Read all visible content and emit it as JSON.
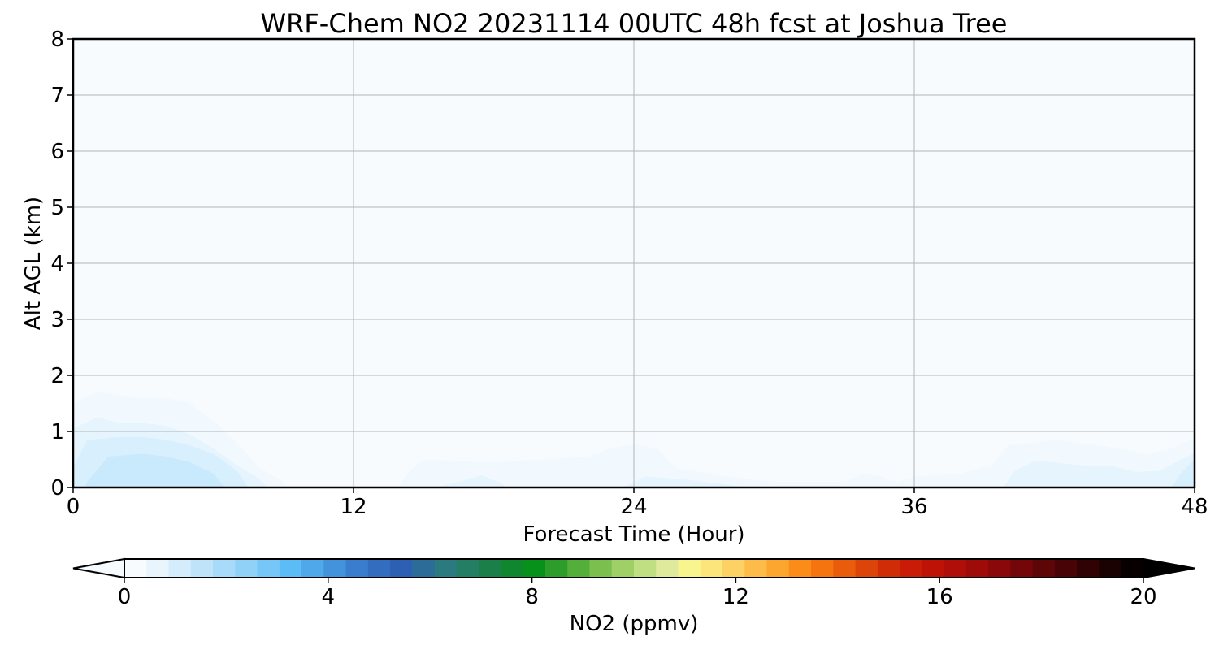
{
  "chart_data": {
    "type": "heatmap",
    "title": "WRF-Chem NO2  20231114 00UTC 48h fcst at Joshua Tree",
    "xlabel": "Forecast Time (Hour)",
    "ylabel": "Alt AGL (km)",
    "xlim": [
      0,
      48
    ],
    "ylim": [
      0,
      8
    ],
    "xticks": [
      "0",
      "12",
      "24",
      "36",
      "48"
    ],
    "yticks": [
      "0",
      "1",
      "2",
      "3",
      "4",
      "5",
      "6",
      "7",
      "8"
    ],
    "grid": true,
    "contour_regions": [
      {
        "level": 0.25,
        "color": "#f2f9fe",
        "points": [
          [
            0,
            1.5
          ],
          [
            1,
            1.7
          ],
          [
            2,
            1.65
          ],
          [
            3,
            1.6
          ],
          [
            4,
            1.6
          ],
          [
            5,
            1.5
          ],
          [
            6,
            1.2
          ],
          [
            7,
            0.8
          ],
          [
            8,
            0.35
          ],
          [
            9,
            0.1
          ],
          [
            9.2,
            0
          ],
          [
            0,
            0
          ]
        ]
      },
      {
        "level": 0.5,
        "color": "#e6f4fd",
        "points": [
          [
            0,
            1.05
          ],
          [
            1,
            1.25
          ],
          [
            2,
            1.15
          ],
          [
            3,
            1.15
          ],
          [
            4,
            1.1
          ],
          [
            5,
            0.95
          ],
          [
            6,
            0.7
          ],
          [
            7,
            0.4
          ],
          [
            8,
            0.15
          ],
          [
            8.3,
            0
          ],
          [
            0,
            0
          ]
        ]
      },
      {
        "level": 0.75,
        "color": "#d8effd",
        "points": [
          [
            0,
            0.35
          ],
          [
            0.6,
            0.85
          ],
          [
            2,
            0.9
          ],
          [
            3,
            0.9
          ],
          [
            4,
            0.85
          ],
          [
            5,
            0.75
          ],
          [
            6,
            0.6
          ],
          [
            7,
            0.3
          ],
          [
            7.5,
            0
          ],
          [
            0,
            0
          ]
        ]
      },
      {
        "level": 1.0,
        "color": "#c9e9fc",
        "points": [
          [
            0.6,
            0.1
          ],
          [
            1.5,
            0.55
          ],
          [
            3,
            0.6
          ],
          [
            4,
            0.55
          ],
          [
            5,
            0.45
          ],
          [
            6,
            0.25
          ],
          [
            6.5,
            0
          ],
          [
            0.5,
            0
          ]
        ]
      },
      {
        "level": 1.0,
        "color": "#c9e9fc",
        "points": [
          [
            1.5,
            0
          ],
          [
            2.5,
            0.1
          ],
          [
            3.5,
            0.15
          ],
          [
            4.5,
            0.1
          ],
          [
            5,
            0
          ],
          [
            1.5,
            0
          ]
        ]
      },
      {
        "level": 0.25,
        "color": "#f2f9fe",
        "points": [
          [
            13.9,
            0
          ],
          [
            14.4,
            0.3
          ],
          [
            15,
            0.5
          ],
          [
            18,
            0.45
          ],
          [
            22,
            0.55
          ],
          [
            23,
            0.7
          ],
          [
            24,
            0.78
          ],
          [
            25,
            0.7
          ],
          [
            25.8,
            0.35
          ],
          [
            28,
            0.2
          ],
          [
            30,
            0.1
          ],
          [
            33,
            0.1
          ],
          [
            33.8,
            0.25
          ],
          [
            34.6,
            0.2
          ],
          [
            35.3,
            0.1
          ],
          [
            36,
            0.2
          ],
          [
            38,
            0.25
          ],
          [
            39.3,
            0.4
          ],
          [
            40,
            0.75
          ],
          [
            42,
            0.85
          ],
          [
            44,
            0.75
          ],
          [
            46,
            0.6
          ],
          [
            47,
            0.7
          ],
          [
            48,
            0.88
          ],
          [
            48,
            0
          ],
          [
            13.9,
            0
          ]
        ]
      },
      {
        "level": 0.5,
        "color": "#e6f4fd",
        "points": [
          [
            15.5,
            0
          ],
          [
            16.5,
            0.1
          ],
          [
            17.5,
            0.22
          ],
          [
            18.2,
            0.1
          ],
          [
            18.6,
            0
          ],
          [
            15.5,
            0
          ]
        ]
      },
      {
        "level": 0.5,
        "color": "#e6f4fd",
        "points": [
          [
            23.5,
            0
          ],
          [
            24.5,
            0.2
          ],
          [
            26,
            0.15
          ],
          [
            28,
            0.05
          ],
          [
            29,
            0
          ],
          [
            23.5,
            0
          ]
        ]
      },
      {
        "level": 0.5,
        "color": "#e6f4fd",
        "points": [
          [
            39.8,
            0
          ],
          [
            40.3,
            0.3
          ],
          [
            41.2,
            0.48
          ],
          [
            43,
            0.4
          ],
          [
            44.5,
            0.38
          ],
          [
            45.5,
            0.28
          ],
          [
            46.5,
            0.3
          ],
          [
            47.2,
            0.45
          ],
          [
            48,
            0.62
          ],
          [
            48,
            0
          ],
          [
            39.8,
            0
          ]
        ]
      },
      {
        "level": 0.75,
        "color": "#d8effd",
        "points": [
          [
            47,
            0
          ],
          [
            47.4,
            0.25
          ],
          [
            48,
            0.5
          ],
          [
            48,
            0
          ],
          [
            47,
            0
          ]
        ]
      }
    ],
    "colorbar": {
      "label": "NO2  (ppmv)",
      "range": [
        0,
        20
      ],
      "ticks": [
        "0",
        "4",
        "8",
        "12",
        "16",
        "20"
      ],
      "extend": "both",
      "colors": [
        "#f7fbfe",
        "#e8f5fd",
        "#d4ecfb",
        "#bfe4fa",
        "#a8dbf9",
        "#90d1f8",
        "#76c7f7",
        "#5bbcf6",
        "#4ea8ea",
        "#4392dc",
        "#3a7ccd",
        "#336dbf",
        "#2d5fb3",
        "#2b6d98",
        "#2a7a80",
        "#237e64",
        "#1a7f48",
        "#10862e",
        "#07901a",
        "#2c9c2a",
        "#54ae3a",
        "#7bc04e",
        "#9fd068",
        "#c0de82",
        "#dfea9c",
        "#f9f58e",
        "#fce57a",
        "#fdd163",
        "#fdbc49",
        "#fca52f",
        "#fb8c1a",
        "#f5740f",
        "#e95c0b",
        "#dc4409",
        "#d02c07",
        "#c91b05",
        "#be1206",
        "#b00e08",
        "#9e0b09",
        "#8a080a",
        "#74060a",
        "#5e0508",
        "#470306",
        "#300204",
        "#1a0102",
        "#080000"
      ]
    }
  }
}
